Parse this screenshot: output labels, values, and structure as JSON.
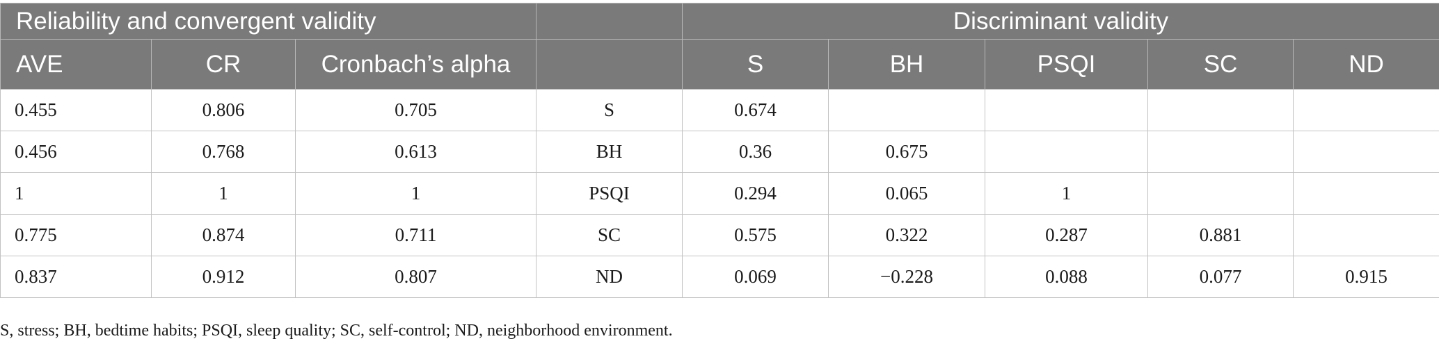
{
  "header": {
    "group_left": "Reliability and convergent validity",
    "group_mid": "",
    "group_right": "Discriminant validity",
    "columns": [
      "AVE",
      "CR",
      "Cronbach’s alpha",
      "",
      "S",
      "BH",
      "PSQI",
      "SC",
      "ND"
    ]
  },
  "rows": [
    [
      "0.455",
      "0.806",
      "0.705",
      "S",
      "0.674",
      "",
      "",
      "",
      ""
    ],
    [
      "0.456",
      "0.768",
      "0.613",
      "BH",
      "0.36",
      "0.675",
      "",
      "",
      ""
    ],
    [
      "1",
      "1",
      "1",
      "PSQI",
      "0.294",
      "0.065",
      "1",
      "",
      ""
    ],
    [
      "0.775",
      "0.874",
      "0.711",
      "SC",
      "0.575",
      "0.322",
      "0.287",
      "0.881",
      ""
    ],
    [
      "0.837",
      "0.912",
      "0.807",
      "ND",
      "0.069",
      "−0.228",
      "0.088",
      "0.077",
      "0.915"
    ]
  ],
  "footnote": "S, stress; BH, bedtime habits; PSQI, sleep quality; SC, self-control; ND, neighborhood environment."
}
